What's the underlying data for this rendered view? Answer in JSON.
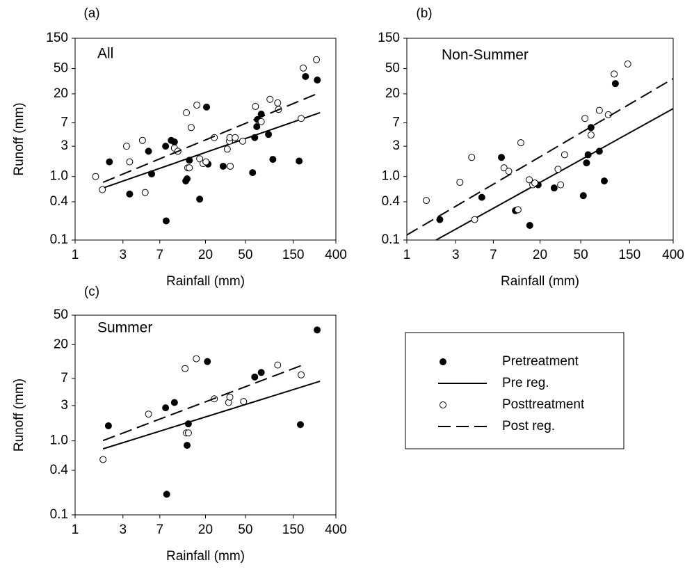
{
  "chart_data": [
    {
      "type": "scatter",
      "label": "(a)",
      "annotation": "All",
      "x_label": "Rainfall (mm)",
      "y_label": "Runoff (mm)",
      "log_x": true,
      "log_y": true,
      "xlim": [
        1,
        400
      ],
      "ylim": [
        0.1,
        150
      ],
      "xticks": [
        1,
        3,
        7,
        20,
        50,
        150,
        400
      ],
      "yticks": [
        0.1,
        0.4,
        {
          "value": 1,
          "label": "1.0"
        },
        3,
        7,
        20,
        50,
        150
      ],
      "series": [
        {
          "name": "Pretreatment",
          "kind": "scatter",
          "color": "#000000",
          "marker_fill": "#000000",
          "x": [
            2.2,
            3.5,
            5.4,
            5.8,
            8.1,
            8.0,
            9.1,
            9.8,
            12.7,
            13.8,
            13.1,
            17.5,
            20.5,
            21.2,
            30,
            59,
            62,
            65,
            66,
            72,
            85,
            94,
            172,
            199,
            261
          ],
          "values": [
            1.7,
            0.53,
            2.5,
            1.1,
            0.2,
            3.0,
            3.7,
            3.5,
            0.85,
            1.8,
            0.92,
            0.44,
            12.4,
            1.57,
            1.45,
            1.15,
            4.1,
            6.1,
            7.9,
            9.6,
            4.6,
            1.86,
            1.75,
            37.5,
            33
          ]
        },
        {
          "name": "Pre reg.",
          "kind": "line",
          "color": "#000000",
          "line_style": "solid",
          "x": [
            1.9,
            278
          ],
          "values": [
            0.66,
            10.1
          ]
        },
        {
          "name": "Posttreatment",
          "kind": "scatter",
          "color": "#000000",
          "marker_fill": "#ffffff",
          "x": [
            1.6,
            1.87,
            3.26,
            3.5,
            4.7,
            5.0,
            9.8,
            10.6,
            12.9,
            13.3,
            13.8,
            14.4,
            16.4,
            17.5,
            18.9,
            20.2,
            24.5,
            33,
            34.7,
            35.3,
            35,
            39.5,
            47,
            63,
            72,
            88,
            105,
            107,
            180,
            189,
            256
          ],
          "values": [
            1.0,
            0.62,
            3.0,
            1.7,
            3.7,
            0.56,
            2.8,
            2.5,
            10.1,
            1.37,
            1.37,
            5.9,
            13.3,
            1.9,
            1.6,
            1.7,
            4.1,
            2.7,
            3.6,
            1.45,
            4.1,
            4.1,
            3.6,
            12.7,
            7.3,
            16.4,
            14.4,
            11.4,
            8.2,
            51,
            69
          ]
        },
        {
          "name": "Post reg.",
          "kind": "line",
          "color": "#000000",
          "line_style": "dashed",
          "x": [
            1.9,
            278
          ],
          "values": [
            0.81,
            21
          ]
        }
      ]
    },
    {
      "type": "scatter",
      "label": "(b)",
      "annotation": "Non-Summer",
      "x_label": "Rainfall (mm)",
      "log_x": true,
      "log_y": true,
      "xlim": [
        1,
        400
      ],
      "ylim": [
        0.1,
        150
      ],
      "xticks": [
        1,
        3,
        7,
        20,
        50,
        150,
        400
      ],
      "yticks": [
        0.1,
        0.4,
        {
          "value": 1,
          "label": "1.0"
        },
        3,
        7,
        20,
        50,
        150
      ],
      "series": [
        {
          "name": "Pretreatment",
          "kind": "scatter",
          "color": "#000000",
          "marker_fill": "#000000",
          "x": [
            2.1,
            5.4,
            8.4,
            11.5,
            15.9,
            19.2,
            27.5,
            53,
            57,
            59,
            63,
            76,
            85,
            109
          ],
          "values": [
            0.21,
            0.47,
            2.0,
            0.29,
            0.17,
            0.74,
            0.66,
            0.5,
            1.64,
            2.2,
            5.9,
            2.5,
            0.85,
            29
          ]
        },
        {
          "name": "Pre reg.",
          "kind": "line",
          "color": "#000000",
          "line_style": "solid",
          "x": [
            1.93,
            400
          ],
          "values": [
            0.1,
            11.7
          ]
        },
        {
          "name": "Posttreatment",
          "kind": "scatter",
          "color": "#000000",
          "marker_fill": "#ffffff",
          "x": [
            1.55,
            3.3,
            4.3,
            4.6,
            8.9,
            9.9,
            13,
            12.2,
            15.7,
            17,
            17.8,
            30,
            31.8,
            34.8,
            55,
            63,
            76,
            93,
            106,
            144
          ],
          "values": [
            0.42,
            0.81,
            2.0,
            0.21,
            1.37,
            1.21,
            3.4,
            0.3,
            0.89,
            0.74,
            0.79,
            1.3,
            0.74,
            2.2,
            8.2,
            4.5,
            11,
            9.4,
            41,
            59
          ]
        },
        {
          "name": "Post reg.",
          "kind": "line",
          "color": "#000000",
          "line_style": "dashed",
          "x": [
            1,
            400
          ],
          "values": [
            0.12,
            34.8
          ]
        }
      ]
    },
    {
      "type": "scatter",
      "label": "(c)",
      "annotation": "Summer",
      "x_label": "Rainfall (mm)",
      "y_label": "Runoff (mm)",
      "log_x": true,
      "log_y": true,
      "xlim": [
        1,
        400
      ],
      "ylim": [
        0.1,
        50
      ],
      "xticks": [
        1,
        3,
        7,
        20,
        50,
        150,
        400
      ],
      "yticks": [
        0.1,
        0.4,
        {
          "value": 1,
          "label": "1.0"
        },
        3,
        7,
        20,
        50
      ],
      "series": [
        {
          "name": "Pretreatment",
          "kind": "scatter",
          "color": "#000000",
          "marker_fill": "#000000",
          "x": [
            2.15,
            8,
            9.8,
            13.5,
            13.1,
            8.2,
            20.9,
            62,
            72,
            177,
            260
          ],
          "values": [
            1.6,
            2.8,
            3.3,
            1.7,
            0.87,
            0.19,
            11.8,
            7.3,
            8.4,
            1.66,
            31.6
          ]
        },
        {
          "name": "Pre reg.",
          "kind": "line",
          "color": "#000000",
          "line_style": "solid",
          "x": [
            1.9,
            278
          ],
          "values": [
            0.78,
            6.4
          ]
        },
        {
          "name": "Posttreatment",
          "kind": "scatter",
          "color": "#000000",
          "marker_fill": "#ffffff",
          "x": [
            1.9,
            5.4,
            12.5,
            16.2,
            12.9,
            13.5,
            24.5,
            34,
            35,
            48,
            105,
            180
          ],
          "values": [
            0.56,
            2.3,
            9.5,
            12.9,
            1.28,
            1.28,
            3.7,
            3.3,
            3.9,
            3.4,
            10.6,
            7.8
          ]
        },
        {
          "name": "Post reg.",
          "kind": "line",
          "color": "#000000",
          "line_style": "dashed",
          "x": [
            1.9,
            180
          ],
          "values": [
            1.01,
            10.4
          ]
        }
      ]
    }
  ]
}
